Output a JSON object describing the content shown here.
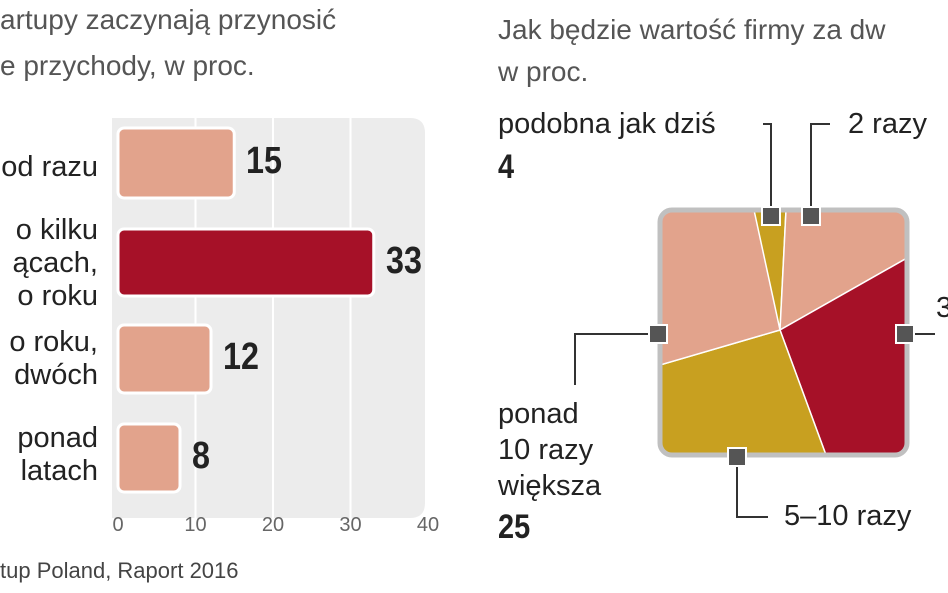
{
  "left_title": [
    "artupy zaczynają przynosić",
    "e przychody, w proc."
  ],
  "right_title": [
    "Jak będzie wartość firmy za dw",
    "w proc."
  ],
  "source": "tup Poland, Raport 2016",
  "chart_data": [
    {
      "type": "bar",
      "orientation": "horizontal",
      "categories": [
        [
          "od razu"
        ],
        [
          "o kilku",
          "ącach,",
          "o roku"
        ],
        [
          "o roku,",
          "dwóch"
        ],
        [
          "ponad",
          "latach"
        ]
      ],
      "values": [
        15,
        33,
        12,
        8
      ],
      "xlim": [
        0,
        40
      ],
      "xticks": [
        0,
        10,
        20,
        30,
        40
      ],
      "grid": true,
      "highlight_index": 1
    },
    {
      "type": "pie",
      "shape": "square",
      "slices": [
        {
          "label": [
            "podobna jak dziś"
          ],
          "value": 4,
          "color": "#c8a020"
        },
        {
          "label": [
            "2 razy"
          ],
          "value": null,
          "color": "#e2a38c"
        },
        {
          "label": [
            "3"
          ],
          "value": null,
          "color": "#a61128"
        },
        {
          "label": [
            "5–10 razy"
          ],
          "value": null,
          "color": "#c8a020"
        },
        {
          "label": [
            "ponad",
            "10 razy",
            "większa"
          ],
          "value": 25,
          "color": "#c8a020"
        },
        {
          "label": [],
          "value": null,
          "color": "#e2a38c"
        }
      ]
    }
  ],
  "colors": {
    "bar_default": "#e2a38c",
    "bar_highlight": "#a61128",
    "pie_frame": "#c0c0c0",
    "marker": "#555555",
    "plot_bg": "#ececec"
  }
}
